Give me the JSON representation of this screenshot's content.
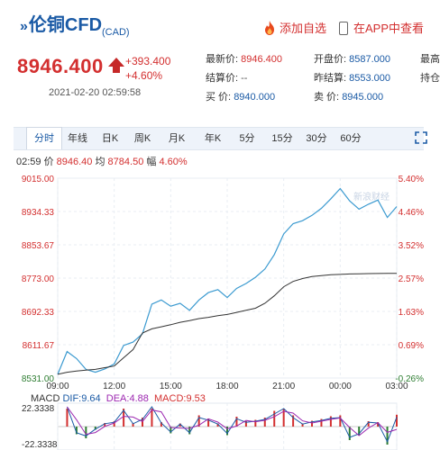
{
  "header": {
    "title_prefix": "»",
    "title": "伦铜CFD",
    "title_sub": "(CAD)",
    "add_favorite": "添加自选",
    "view_in_app": "在APP中查看"
  },
  "quote": {
    "price": "8946.400",
    "change": "+393.400",
    "change_pct": "+4.60%",
    "datetime": "2021-02-20 02:59:58",
    "latest_label": "最新价:",
    "latest_value": "8946.400",
    "settle_label": "结算价:",
    "settle_value": "--",
    "buy_label": "买  价:",
    "buy_value": "8940.000",
    "open_label": "开盘价:",
    "open_value": "8587.000",
    "prev_settle_label": "昨结算:",
    "prev_settle_value": "8553.000",
    "sell_label": "卖  价:",
    "sell_value": "8945.000",
    "high_label": "最高",
    "hold_label": "持仓"
  },
  "tabs": [
    "分时",
    "年线",
    "日K",
    "周K",
    "月K",
    "年K",
    "5分",
    "15分",
    "30分",
    "60分"
  ],
  "info_bar": {
    "time": "02:59",
    "price_label": "价",
    "price": "8946.40",
    "avg_label": "均",
    "avg": "8784.50",
    "amp_label": "幅",
    "amp": "4.60%"
  },
  "watermark": "新浪财经",
  "macd": {
    "label": "MACD",
    "dif_label": "DIF:",
    "dif": "9.64",
    "dea_label": "DEA:",
    "dea": "4.88",
    "macd_label": "MACD:",
    "macd": "9.53",
    "ymax": "22.3338",
    "ymin": "-22.3338"
  },
  "colors": {
    "price_line": "#3b9ad0",
    "avg_line": "#333333",
    "up": "#d32f2f",
    "down": "#2e7d32",
    "dif": "#1a5aa5",
    "dea": "#9c27b0"
  },
  "chart_data": {
    "type": "line",
    "x_ticks": [
      "09:00",
      "12:00",
      "15:00",
      "18:00",
      "21:00",
      "00:00",
      "03:00"
    ],
    "y_ticks_left": [
      "9015.00",
      "8934.33",
      "8853.67",
      "8773.00",
      "8692.33",
      "8611.67",
      "8531.00"
    ],
    "y_ticks_right": [
      "5.40%",
      "4.46%",
      "3.52%",
      "2.57%",
      "1.63%",
      "0.69%",
      "-0.26%"
    ],
    "ylim": [
      8531.0,
      9015.0
    ],
    "x": [
      0,
      0.5,
      1,
      1.5,
      2,
      2.5,
      3,
      3.5,
      4,
      4.5,
      5,
      5.5,
      6,
      6.5,
      7,
      7.5,
      8,
      8.5,
      9,
      9.5,
      10,
      10.5,
      11,
      11.5,
      12,
      12.5,
      13,
      13.5,
      14,
      14.5,
      15,
      15.5,
      16,
      16.5,
      17,
      17.5,
      18
    ],
    "series": [
      {
        "values": [
          8540,
          8595,
          8578,
          8552,
          8545,
          8553,
          8565,
          8610,
          8618,
          8638,
          8710,
          8720,
          8705,
          8712,
          8695,
          8720,
          8738,
          8745,
          8726,
          8748,
          8760,
          8775,
          8795,
          8830,
          8880,
          8905,
          8912,
          8925,
          8942,
          8965,
          8990,
          8960,
          8940,
          8952,
          8962,
          8920,
          8946.4
        ]
      },
      {
        "values": [
          8540,
          8545,
          8548,
          8550,
          8552,
          8556,
          8560,
          8580,
          8600,
          8640,
          8650,
          8655,
          8660,
          8666,
          8670,
          8675,
          8678,
          8682,
          8685,
          8690,
          8695,
          8700,
          8712,
          8730,
          8752,
          8765,
          8772,
          8777,
          8779,
          8781,
          8782,
          8783,
          8783.5,
          8784,
          8784.2,
          8784.4,
          8784.5
        ]
      }
    ]
  }
}
